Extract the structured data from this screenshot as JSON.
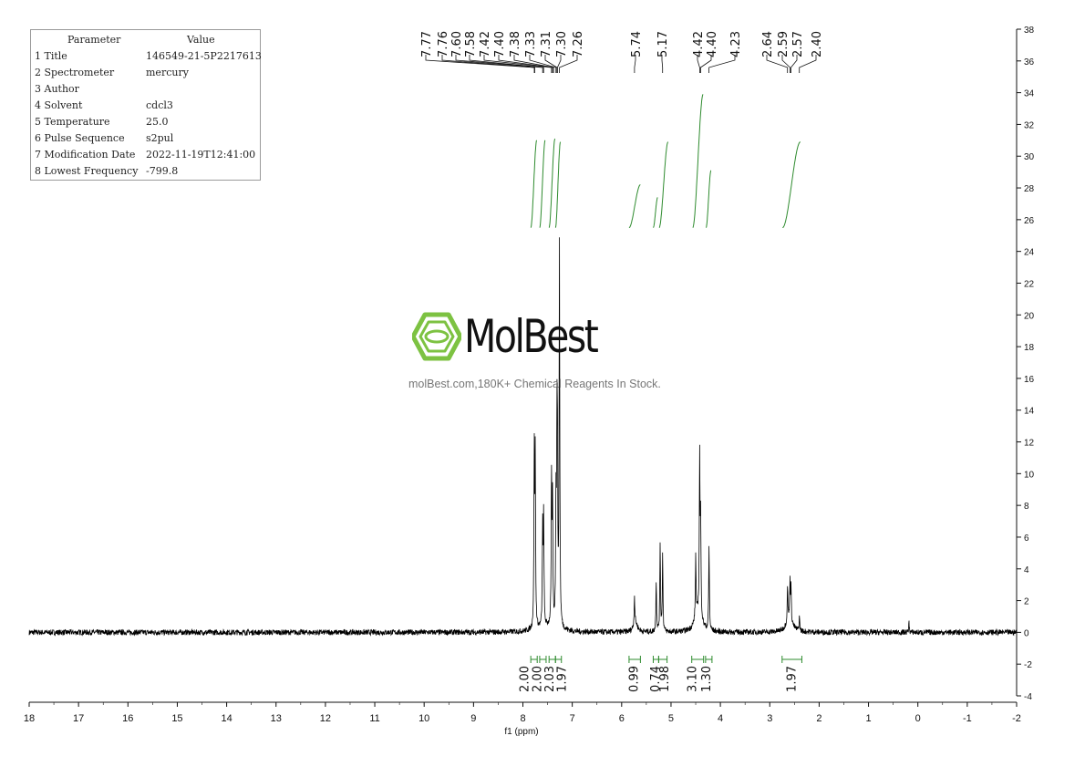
{
  "params": {
    "header": {
      "param": "Parameter",
      "value": "Value"
    },
    "rows": [
      {
        "param": "1 Title",
        "value": "146549-21-5P2217613"
      },
      {
        "param": "2 Spectrometer",
        "value": "mercury"
      },
      {
        "param": "3 Author",
        "value": ""
      },
      {
        "param": "4 Solvent",
        "value": "cdcl3"
      },
      {
        "param": "5 Temperature",
        "value": "25.0"
      },
      {
        "param": "6 Pulse Sequence",
        "value": "s2pul"
      },
      {
        "param": "7 Modification Date",
        "value": "2022-11-19T12:41:00"
      },
      {
        "param": "8 Lowest Frequency",
        "value": "-799.8"
      }
    ]
  },
  "watermark": {
    "brand": "MolBest",
    "tagline": "molBest.com,180K+ Chemical Reagents In Stock.",
    "brand_color": "#7dc242"
  },
  "chart_data": {
    "type": "line",
    "xlabel": "f1 (ppm)",
    "xlim": [
      18,
      -2
    ],
    "ylim": [
      -4,
      38
    ],
    "x_ticks": [
      "18",
      "17",
      "16",
      "15",
      "14",
      "13",
      "12",
      "11",
      "10",
      "9",
      "8",
      "7",
      "6",
      "5",
      "4",
      "3",
      "2",
      "1",
      "0",
      "-1",
      "-2"
    ],
    "y_ticks": [
      "-4",
      "-2",
      "0",
      "2",
      "4",
      "6",
      "8",
      "10",
      "12",
      "14",
      "16",
      "18",
      "20",
      "22",
      "24",
      "26",
      "28",
      "30",
      "32",
      "34",
      "36",
      "38"
    ],
    "peak_labels": [
      "7.77",
      "7.76",
      "7.60",
      "7.58",
      "7.42",
      "7.40",
      "7.38",
      "7.33",
      "7.31",
      "7.30",
      "7.26",
      "5.74",
      "5.17",
      "4.42",
      "4.40",
      "4.23",
      "2.64",
      "2.59",
      "2.57",
      "2.40"
    ],
    "peaks": [
      {
        "ppm": 7.77,
        "height": 11.0
      },
      {
        "ppm": 7.75,
        "height": 10.5
      },
      {
        "ppm": 7.6,
        "height": 6.2
      },
      {
        "ppm": 7.58,
        "height": 6.8
      },
      {
        "ppm": 7.42,
        "height": 9.0
      },
      {
        "ppm": 7.4,
        "height": 7.5
      },
      {
        "ppm": 7.33,
        "height": 7.5
      },
      {
        "ppm": 7.31,
        "height": 11.0
      },
      {
        "ppm": 7.3,
        "height": 8.0
      },
      {
        "ppm": 7.26,
        "height": 24.0
      },
      {
        "ppm": 5.74,
        "height": 1.8
      },
      {
        "ppm": 5.3,
        "height": 3.2
      },
      {
        "ppm": 5.22,
        "height": 5.6
      },
      {
        "ppm": 5.17,
        "height": 4.8
      },
      {
        "ppm": 4.5,
        "height": 4.0
      },
      {
        "ppm": 4.42,
        "height": 10.0
      },
      {
        "ppm": 4.4,
        "height": 6.0
      },
      {
        "ppm": 4.23,
        "height": 5.3
      },
      {
        "ppm": 2.64,
        "height": 2.3
      },
      {
        "ppm": 2.59,
        "height": 2.4
      },
      {
        "ppm": 2.57,
        "height": 2.0
      },
      {
        "ppm": 2.4,
        "height": 0.9
      },
      {
        "ppm": 0.18,
        "height": 0.6
      }
    ],
    "integrals": [
      {
        "value": "2.00",
        "from": 7.84,
        "to": 7.71,
        "label_ppm": 7.98
      },
      {
        "value": "2.00",
        "from": 7.66,
        "to": 7.53,
        "label_ppm": 7.72
      },
      {
        "value": "2.03",
        "from": 7.47,
        "to": 7.34,
        "label_ppm": 7.47
      },
      {
        "value": "1.97",
        "from": 7.34,
        "to": 7.22,
        "label_ppm": 7.22
      },
      {
        "value": "0.99",
        "from": 5.85,
        "to": 5.62,
        "label_ppm": 5.77
      },
      {
        "value": "0.74",
        "from": 5.36,
        "to": 5.25,
        "label_ppm": 5.33
      },
      {
        "value": "1.98",
        "from": 5.25,
        "to": 5.08,
        "label_ppm": 5.15
      },
      {
        "value": "3.10",
        "from": 4.58,
        "to": 4.34,
        "label_ppm": 4.58
      },
      {
        "value": "1.30",
        "from": 4.3,
        "to": 4.17,
        "label_ppm": 4.3
      },
      {
        "value": "1.97",
        "from": 2.75,
        "to": 2.35,
        "label_ppm": 2.57
      }
    ],
    "integral_curves": [
      {
        "from": 7.84,
        "to": 7.72,
        "start": 25.5,
        "end": 31.0
      },
      {
        "from": 7.66,
        "to": 7.55,
        "start": 25.5,
        "end": 31.0
      },
      {
        "from": 7.47,
        "to": 7.35,
        "start": 25.5,
        "end": 31.1
      },
      {
        "from": 7.34,
        "to": 7.24,
        "start": 25.5,
        "end": 30.9
      },
      {
        "from": 5.85,
        "to": 5.62,
        "start": 25.5,
        "end": 28.2
      },
      {
        "from": 5.36,
        "to": 5.27,
        "start": 25.5,
        "end": 27.4
      },
      {
        "from": 5.24,
        "to": 5.06,
        "start": 25.5,
        "end": 30.9
      },
      {
        "from": 4.56,
        "to": 4.35,
        "start": 25.5,
        "end": 33.9
      },
      {
        "from": 4.29,
        "to": 4.19,
        "start": 25.5,
        "end": 29.1
      },
      {
        "from": 2.74,
        "to": 2.38,
        "start": 25.5,
        "end": 30.9
      }
    ],
    "series_color": "#000000",
    "integral_color": "#2e8b2e",
    "grid": false
  }
}
